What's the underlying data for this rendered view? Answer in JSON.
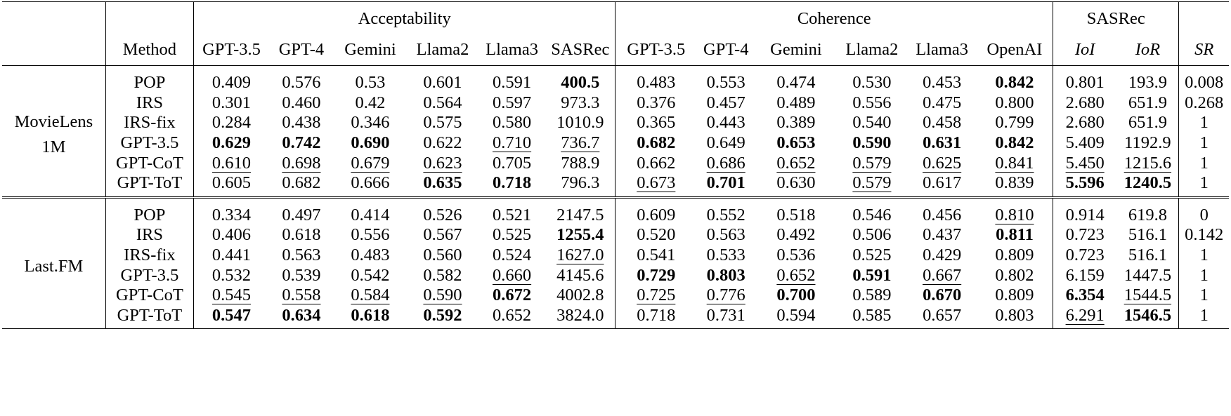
{
  "header": {
    "method": "Method",
    "groups": {
      "acceptability": "Acceptability",
      "coherence": "Coherence",
      "sasrec": "SASRec"
    },
    "acc_cols": [
      "GPT-3.5",
      "GPT-4",
      "Gemini",
      "Llama2",
      "Llama3",
      "SASRec"
    ],
    "coh_cols": [
      "GPT-3.5",
      "GPT-4",
      "Gemini",
      "Llama2",
      "Llama3",
      "OpenAI"
    ],
    "sas_cols": [
      "IoI",
      "IoR"
    ],
    "sr": "SR"
  },
  "datasets": [
    {
      "name_line1": "MovieLens",
      "name_line2": "1M",
      "rows": [
        {
          "method": "POP",
          "cells": [
            "0.409",
            "0.576",
            "0.53",
            "0.601",
            "0.591",
            "400.5",
            "0.483",
            "0.553",
            "0.474",
            "0.530",
            "0.453",
            "0.842",
            "0.801",
            "193.9",
            "0.008"
          ]
        },
        {
          "method": "IRS",
          "cells": [
            "0.301",
            "0.460",
            "0.42",
            "0.564",
            "0.597",
            "973.3",
            "0.376",
            "0.457",
            "0.489",
            "0.556",
            "0.475",
            "0.800",
            "2.680",
            "651.9",
            "0.268"
          ]
        },
        {
          "method": "IRS-fix",
          "cells": [
            "0.284",
            "0.438",
            "0.346",
            "0.575",
            "0.580",
            "1010.9",
            "0.365",
            "0.443",
            "0.389",
            "0.540",
            "0.458",
            "0.799",
            "2.680",
            "651.9",
            "1"
          ]
        },
        {
          "method": "GPT-3.5",
          "cells": [
            "0.629",
            "0.742",
            "0.690",
            "0.622",
            "0.710",
            "736.7",
            "0.682",
            "0.649",
            "0.653",
            "0.590",
            "0.631",
            "0.842",
            "5.409",
            "1192.9",
            "1"
          ]
        },
        {
          "method": "GPT-CoT",
          "cells": [
            "0.610",
            "0.698",
            "0.679",
            "0.623",
            "0.705",
            "788.9",
            "0.662",
            "0.686",
            "0.652",
            "0.579",
            "0.625",
            "0.841",
            "5.450",
            "1215.6",
            "1"
          ]
        },
        {
          "method": "GPT-ToT",
          "cells": [
            "0.605",
            "0.682",
            "0.666",
            "0.635",
            "0.718",
            "796.3",
            "0.673",
            "0.701",
            "0.630",
            "0.579",
            "0.617",
            "0.839",
            "5.596",
            "1240.5",
            "1"
          ]
        }
      ]
    },
    {
      "name_line1": "Last.FM",
      "name_line2": "",
      "rows": [
        {
          "method": "POP",
          "cells": [
            "0.334",
            "0.497",
            "0.414",
            "0.526",
            "0.521",
            "2147.5",
            "0.609",
            "0.552",
            "0.518",
            "0.546",
            "0.456",
            "0.810",
            "0.914",
            "619.8",
            "0"
          ]
        },
        {
          "method": "IRS",
          "cells": [
            "0.406",
            "0.618",
            "0.556",
            "0.567",
            "0.525",
            "1255.4",
            "0.520",
            "0.563",
            "0.492",
            "0.506",
            "0.437",
            "0.811",
            "0.723",
            "516.1",
            "0.142"
          ]
        },
        {
          "method": "IRS-fix",
          "cells": [
            "0.441",
            "0.563",
            "0.483",
            "0.560",
            "0.524",
            "1627.0",
            "0.541",
            "0.533",
            "0.536",
            "0.525",
            "0.429",
            "0.809",
            "0.723",
            "516.1",
            "1"
          ]
        },
        {
          "method": "GPT-3.5",
          "cells": [
            "0.532",
            "0.539",
            "0.542",
            "0.582",
            "0.660",
            "4145.6",
            "0.729",
            "0.803",
            "0.652",
            "0.591",
            "0.667",
            "0.802",
            "6.159",
            "1447.5",
            "1"
          ]
        },
        {
          "method": "GPT-CoT",
          "cells": [
            "0.545",
            "0.558",
            "0.584",
            "0.590",
            "0.672",
            "4002.8",
            "0.725",
            "0.776",
            "0.700",
            "0.589",
            "0.670",
            "0.809",
            "6.354",
            "1544.5",
            "1"
          ]
        },
        {
          "method": "GPT-ToT",
          "cells": [
            "0.547",
            "0.634",
            "0.618",
            "0.592",
            "0.652",
            "3824.0",
            "0.718",
            "0.731",
            "0.594",
            "0.585",
            "0.657",
            "0.803",
            "6.291",
            "1546.5",
            "1"
          ]
        }
      ]
    }
  ]
}
